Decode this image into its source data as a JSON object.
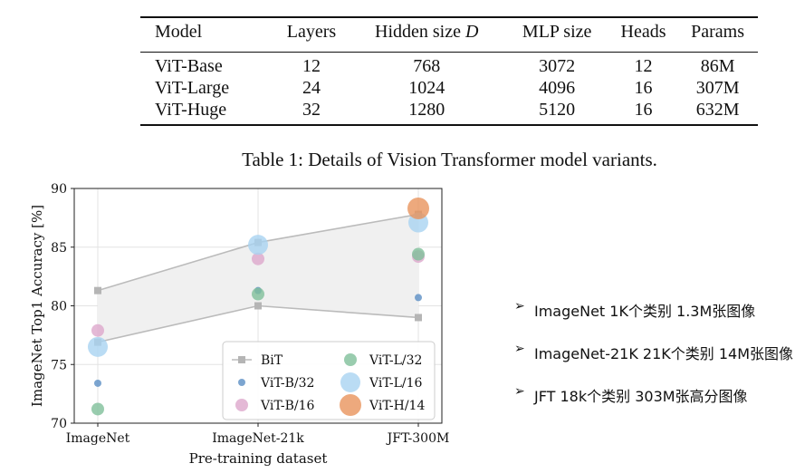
{
  "table": {
    "headers": [
      "Model",
      "Layers",
      "Hidden size D",
      "MLP size",
      "Heads",
      "Params"
    ],
    "rows": [
      [
        "ViT-Base",
        "12",
        "768",
        "3072",
        "12",
        "86M"
      ],
      [
        "ViT-Large",
        "24",
        "1024",
        "4096",
        "16",
        "307M"
      ],
      [
        "ViT-Huge",
        "32",
        "1280",
        "5120",
        "16",
        "632M"
      ]
    ],
    "caption": "Table 1: Details of Vision Transformer model variants."
  },
  "chart_data": {
    "type": "scatter",
    "categories": [
      "ImageNet",
      "ImageNet-21k",
      "JFT-300M"
    ],
    "xlabel": "Pre-training dataset",
    "ylabel": "ImageNet Top1 Accuracy [%]",
    "ylim": [
      70,
      90
    ],
    "yticks": [
      70,
      75,
      80,
      85,
      90
    ],
    "grid": true,
    "legend_position": "lower-right",
    "bit_band": {
      "name": "BiT",
      "upper": [
        81.3,
        85.4,
        87.8
      ],
      "lower": [
        76.9,
        80.0,
        79.0
      ],
      "color": "#bbbbbb"
    },
    "series": [
      {
        "name": "ViT-B/32",
        "values": [
          73.4,
          81.3,
          80.7
        ],
        "color": "#5b8fc4",
        "size": 4
      },
      {
        "name": "ViT-B/16",
        "values": [
          77.9,
          84.0,
          84.2
        ],
        "color": "#dda7cc",
        "size": 7
      },
      {
        "name": "ViT-L/32",
        "values": [
          71.2,
          81.0,
          84.4
        ],
        "color": "#7fbf9a",
        "size": 7
      },
      {
        "name": "ViT-L/16",
        "values": [
          76.5,
          85.2,
          87.1
        ],
        "color": "#a9d3f1",
        "size": 11
      },
      {
        "name": "ViT-H/14",
        "values": [
          null,
          null,
          88.3
        ],
        "color": "#e8945c",
        "size": 12
      }
    ]
  },
  "notes": [
    "ImageNet 1K个类别 1.3M张图像",
    "ImageNet-21K  21K个类别 14M张图像",
    "JFT  18k个类别 303M张高分图像"
  ]
}
